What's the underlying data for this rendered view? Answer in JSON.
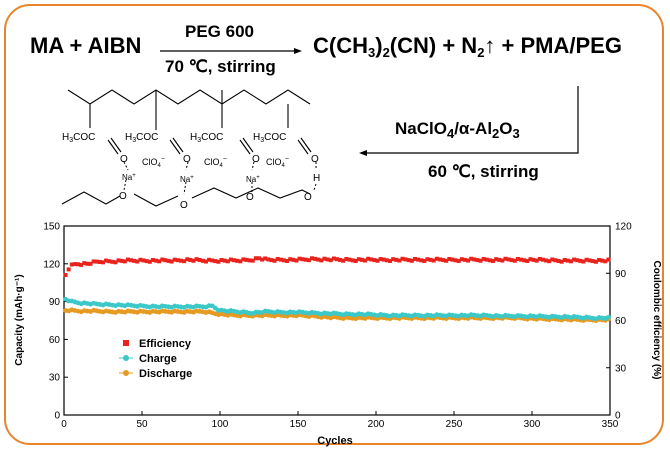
{
  "reaction": {
    "reactants": "MA + AIBN",
    "condition1_reagent": "PEG 600",
    "condition1_temp": "70 ℃, stirring",
    "product_prefix": "C(CH",
    "product_sub1": "3",
    "product_mid1": ")",
    "product_sub2": "2",
    "product_mid2": "(CN) + N",
    "product_sub3": "2",
    "product_suffix": "↑ + PMA/PEG",
    "condition2_reagent_a": "NaClO",
    "condition2_sub1": "4",
    "condition2_reagent_b": "/α-Al",
    "condition2_sub2": "2",
    "condition2_reagent_c": "O",
    "condition2_sub3": "3",
    "condition2_temp": "60 ℃, stirring"
  },
  "structure": {
    "ester_label": "H3COC",
    "carbonyl_o": "O",
    "perchlorate": "ClO4",
    "perchlorate_charge": "−",
    "sodium": "Na",
    "sodium_charge": "+",
    "ether_o": "O",
    "hydroxyl_o": "O",
    "hydrogen": "H"
  },
  "chart_data": {
    "type": "scatter",
    "xlabel": "Cycles",
    "ylabel_left": "Capacity (mAh·g⁻¹)",
    "ylabel_right": "Coulombic efficiency (%)",
    "xlim": [
      0,
      350
    ],
    "ylim_left": [
      0,
      150
    ],
    "ylim_right": [
      0,
      120
    ],
    "x_ticks": [
      0,
      50,
      100,
      150,
      200,
      250,
      300,
      350
    ],
    "y_left_ticks": [
      0,
      30,
      60,
      90,
      120,
      150
    ],
    "y_right_ticks": [
      0,
      30,
      60,
      90,
      120
    ],
    "legend_position": "center-left",
    "series": [
      {
        "name": "Efficiency",
        "axis": "right",
        "color": "#e8231c",
        "marker": "square",
        "x": [
          1,
          3,
          5,
          8,
          10,
          15,
          20,
          25,
          30,
          40,
          50,
          60,
          70,
          80,
          90,
          100,
          110,
          120,
          125,
          130,
          150,
          160,
          180,
          200,
          220,
          250,
          280,
          300,
          320,
          340,
          350
        ],
        "y": [
          89,
          93,
          95,
          96,
          96,
          96,
          97,
          97.5,
          97.5,
          98,
          98,
          98,
          98,
          98.5,
          98,
          98,
          98,
          98.5,
          99.5,
          98.5,
          98.5,
          99,
          98.5,
          98.5,
          98.5,
          98.5,
          98.5,
          98.5,
          98,
          98,
          98
        ]
      },
      {
        "name": "Charge",
        "axis": "left",
        "color": "#3cc8c8",
        "marker": "circle",
        "x": [
          1,
          5,
          10,
          20,
          30,
          40,
          50,
          60,
          70,
          80,
          90,
          95,
          100,
          110,
          120,
          130,
          140,
          150,
          160,
          170,
          180,
          190,
          200,
          210,
          220,
          230,
          240,
          250,
          260,
          270,
          280,
          290,
          300,
          310,
          320,
          330,
          340,
          350
        ],
        "y": [
          92,
          90,
          89,
          88,
          87.5,
          87,
          86.5,
          86,
          86,
          86,
          86,
          86.5,
          83,
          82,
          81,
          82,
          81.5,
          81.5,
          81,
          80.5,
          80,
          80,
          79.5,
          79,
          79,
          79,
          79,
          79,
          79,
          79,
          78.5,
          78.5,
          78.5,
          78,
          78,
          77.5,
          77,
          77
        ]
      },
      {
        "name": "Discharge",
        "axis": "left",
        "color": "#e69a22",
        "marker": "circle",
        "x": [
          1,
          5,
          10,
          20,
          30,
          40,
          50,
          60,
          70,
          80,
          90,
          100,
          110,
          120,
          130,
          140,
          150,
          160,
          170,
          180,
          190,
          200,
          210,
          220,
          230,
          240,
          250,
          260,
          270,
          280,
          290,
          300,
          310,
          320,
          330,
          340,
          350
        ],
        "y": [
          83,
          83,
          82.5,
          82.5,
          82,
          82,
          82,
          82,
          82,
          82,
          82,
          80,
          79,
          79,
          79,
          79,
          79,
          78.5,
          77.5,
          77,
          77,
          77,
          77,
          77,
          77,
          77,
          77,
          77,
          77,
          77,
          77,
          76.5,
          76,
          76,
          75.5,
          75.5,
          75.5
        ]
      }
    ]
  }
}
